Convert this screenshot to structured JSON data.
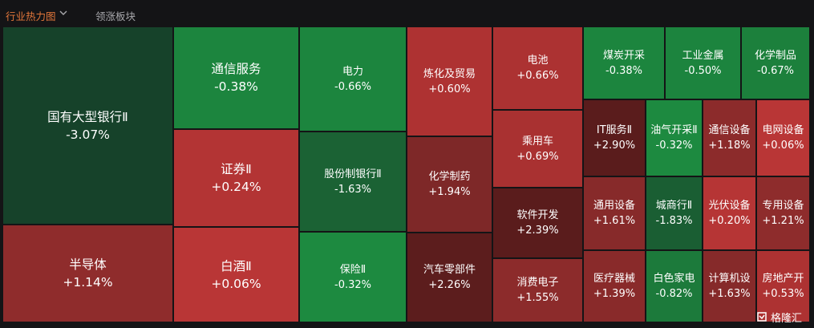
{
  "tabs": [
    {
      "label": "行业热力图",
      "active": true
    },
    {
      "label": "领涨板块",
      "active": false
    }
  ],
  "colors": {
    "deep_green": "#16422a",
    "dark_green": "#1b6a36",
    "green": "#1c853e",
    "dark_red": "#5a1c1c",
    "maroon": "#7e2828",
    "red": "#a83131",
    "bright_red": "#b93636"
  },
  "cells": [
    {
      "name": "国有大型银行Ⅱ",
      "change": "-3.07%",
      "color": "#16422a"
    },
    {
      "name": "半导体",
      "change": "+1.14%",
      "color": "#8f2c2c"
    },
    {
      "name": "通信服务",
      "change": "-0.38%",
      "color": "#1c853e"
    },
    {
      "name": "证券Ⅱ",
      "change": "+0.24%",
      "color": "#b33434"
    },
    {
      "name": "白酒Ⅱ",
      "change": "+0.06%",
      "color": "#b93636"
    },
    {
      "name": "电力",
      "change": "-0.66%",
      "color": "#1c853e"
    },
    {
      "name": "股份制银行Ⅱ",
      "change": "-1.63%",
      "color": "#1b6234"
    },
    {
      "name": "保险Ⅱ",
      "change": "-0.32%",
      "color": "#1d8a40"
    },
    {
      "name": "炼化及贸易",
      "change": "+0.60%",
      "color": "#ae3232"
    },
    {
      "name": "化学制药",
      "change": "+1.94%",
      "color": "#7e2828"
    },
    {
      "name": "汽车零部件",
      "change": "+2.26%",
      "color": "#5c1d1d"
    },
    {
      "name": "电池",
      "change": "+0.66%",
      "color": "#ac3232"
    },
    {
      "name": "乘用车",
      "change": "+0.69%",
      "color": "#a93131"
    },
    {
      "name": "软件开发",
      "change": "+2.39%",
      "color": "#5a1c1c"
    },
    {
      "name": "消费电子",
      "change": "+1.55%",
      "color": "#8c2b2b"
    },
    {
      "name": "煤炭开采",
      "change": "-0.38%",
      "color": "#1c853e"
    },
    {
      "name": "工业金属",
      "change": "-0.50%",
      "color": "#1c843e"
    },
    {
      "name": "化学制品",
      "change": "-0.67%",
      "color": "#1c803c"
    },
    {
      "name": "IT服务Ⅱ",
      "change": "+2.90%",
      "color": "#5a1c1c"
    },
    {
      "name": "油气开采Ⅱ",
      "change": "-0.32%",
      "color": "#1d8a40"
    },
    {
      "name": "通信设备",
      "change": "+1.18%",
      "color": "#8c2b2b"
    },
    {
      "name": "电网设备",
      "change": "+0.06%",
      "color": "#b93636"
    },
    {
      "name": "通用设备",
      "change": "+1.61%",
      "color": "#872a2a"
    },
    {
      "name": "城商行Ⅱ",
      "change": "-1.83%",
      "color": "#1a5e33"
    },
    {
      "name": "光伏设备",
      "change": "+0.20%",
      "color": "#b63535"
    },
    {
      "name": "专用设备",
      "change": "+1.21%",
      "color": "#8e2c2c"
    },
    {
      "name": "医疗器械",
      "change": "+1.39%",
      "color": "#892a2a"
    },
    {
      "name": "白色家电",
      "change": "-0.82%",
      "color": "#1c7a3b"
    },
    {
      "name": "计算机设",
      "change": "+1.63%",
      "color": "#862a2a"
    },
    {
      "name": "房地产开",
      "change": "+0.53%",
      "color": "#ad3232"
    }
  ],
  "watermark": {
    "text": "格隆汇",
    "icon": "gelonghui-logo-icon"
  }
}
